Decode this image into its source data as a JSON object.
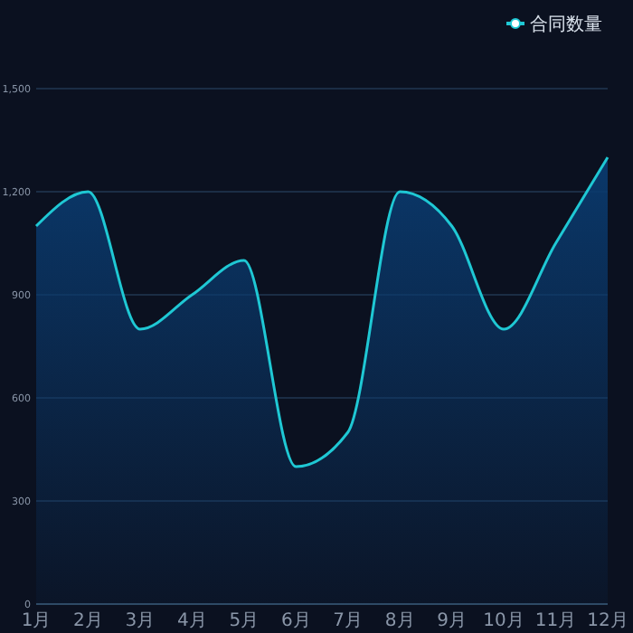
{
  "chart_data": {
    "type": "area",
    "categories": [
      "1月",
      "2月",
      "3月",
      "4月",
      "5月",
      "6月",
      "7月",
      "8月",
      "9月",
      "10月",
      "11月",
      "12月"
    ],
    "series": [
      {
        "name": "合同数量",
        "color": "#1fc8d4",
        "values": [
          1100,
          1200,
          800,
          900,
          1000,
          400,
          500,
          1200,
          1100,
          800,
          1050,
          1300
        ]
      }
    ],
    "ylim": [
      0,
      1500
    ],
    "yticks": [
      0,
      {
        "value": 300,
        "label": "300"
      },
      {
        "value": 600,
        "label": "600"
      },
      {
        "value": 900,
        "label": "900"
      },
      {
        "value": 1200,
        "label": "1,200"
      },
      {
        "value": 1500,
        "label": "1,500"
      }
    ],
    "grid": "y",
    "legend": "top right",
    "marker": "none"
  }
}
